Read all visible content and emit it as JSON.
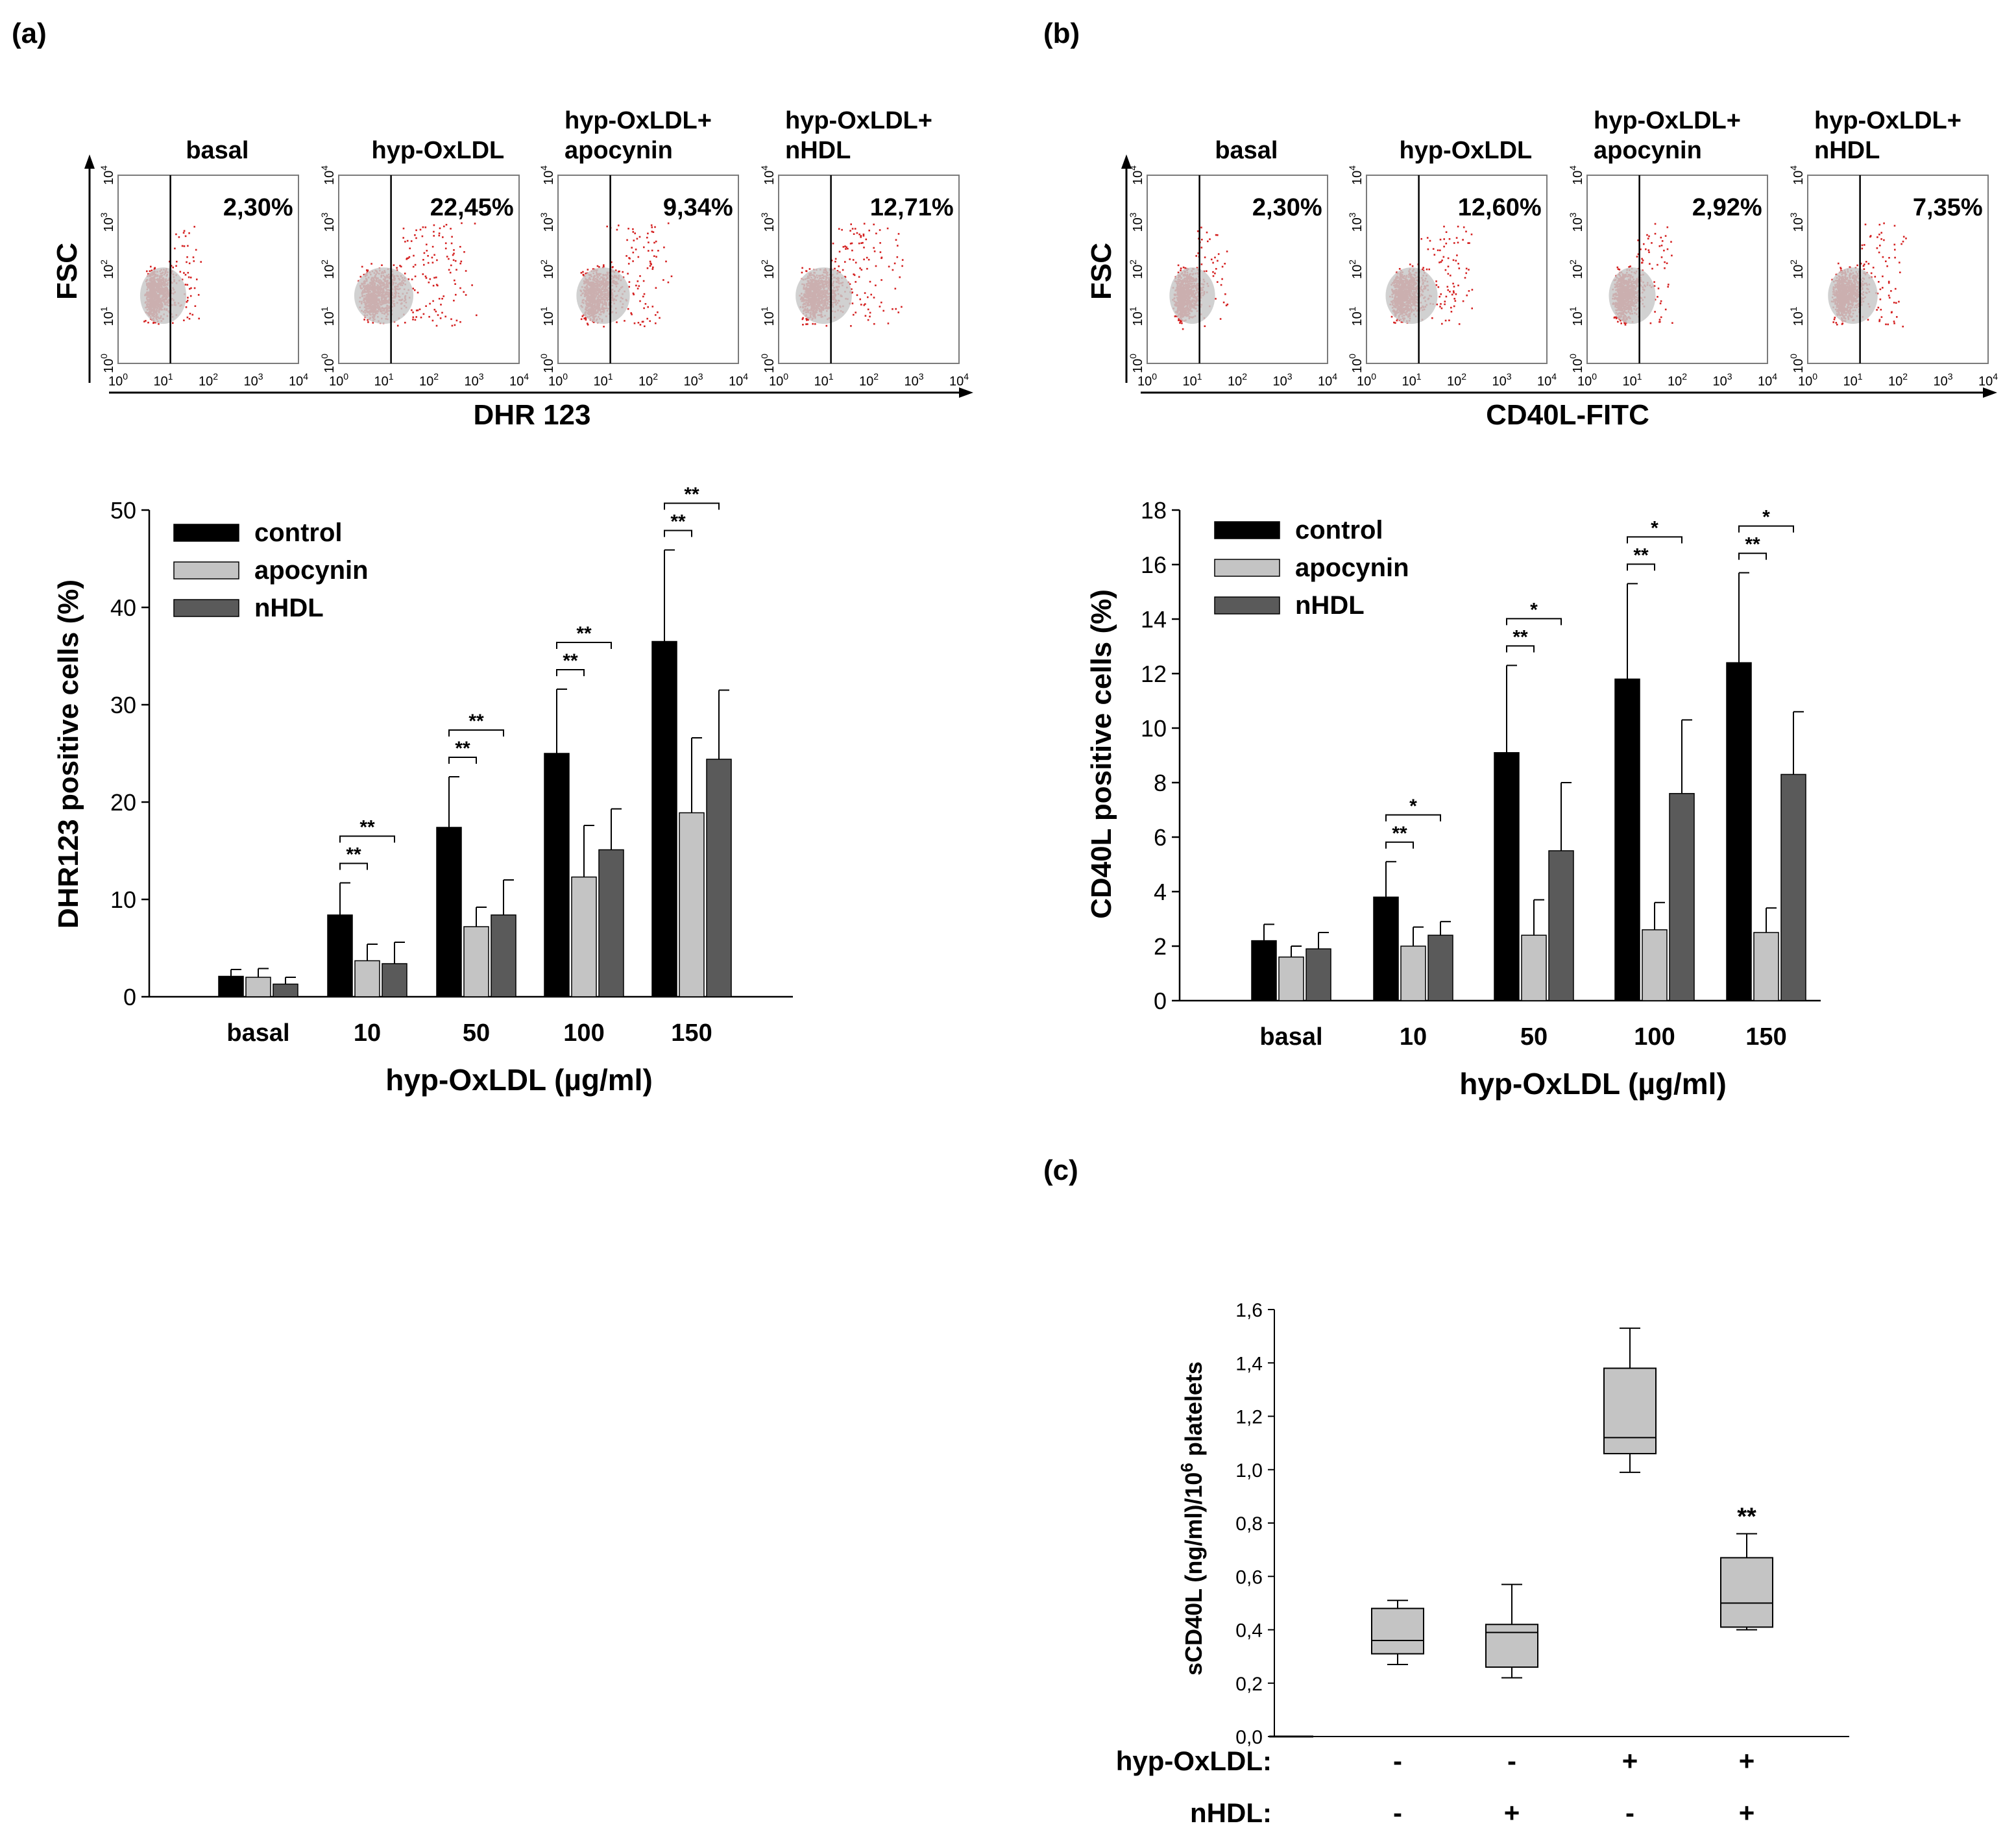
{
  "colors": {
    "control": "#000000",
    "apocynin": "#c4c4c4",
    "nhdl": "#5a5a5a",
    "box": "#c4c4c4",
    "dots": "#d42020",
    "dots_core": "#c9c9c9"
  },
  "panel_a": {
    "label": "(a)",
    "flow": {
      "y_label": "FSC",
      "x_label": "DHR 123",
      "plots": [
        {
          "title_line1": "basal",
          "title_line2": "",
          "percent": "2,30%",
          "spread": 0.1
        },
        {
          "title_line1": "hyp-OxLDL",
          "title_line2": "",
          "percent": "22,45%",
          "spread": 0.55
        },
        {
          "title_line1": "hyp-OxLDL+",
          "title_line2": "apocynin",
          "percent": "9,34%",
          "spread": 0.35
        },
        {
          "title_line1": "hyp-OxLDL+",
          "title_line2": "nHDL",
          "percent": "12,71%",
          "spread": 0.45
        }
      ],
      "ticks": [
        "10",
        "10",
        "10",
        "10",
        "10"
      ],
      "tick_exps": [
        "0",
        "1",
        "2",
        "3",
        "4"
      ]
    }
  },
  "panel_b": {
    "label": "(b)",
    "flow": {
      "y_label": "FSC",
      "x_label": "CD40L-FITC",
      "plots": [
        {
          "title_line1": "basal",
          "title_line2": "",
          "percent": "2,30%",
          "spread": 0.08
        },
        {
          "title_line1": "hyp-OxLDL",
          "title_line2": "",
          "percent": "12,60%",
          "spread": 0.3
        },
        {
          "title_line1": "hyp-OxLDL+",
          "title_line2": "apocynin",
          "percent": "2,92%",
          "spread": 0.12
        },
        {
          "title_line1": "hyp-OxLDL+",
          "title_line2": "nHDL",
          "percent": "7,35%",
          "spread": 0.22
        }
      ],
      "ticks": [
        "10",
        "10",
        "10",
        "10",
        "10"
      ],
      "tick_exps": [
        "0",
        "1",
        "2",
        "3",
        "4"
      ]
    }
  },
  "panel_c": {
    "label": "(c)"
  },
  "chart_data": [
    {
      "id": "a",
      "type": "bar",
      "title": "",
      "xlabel": "hyp-OxLDL (µg/ml)",
      "ylabel": "DHR123 positive cells (%)",
      "ylim": [
        0,
        50
      ],
      "yticks": [
        "0",
        "10",
        "20",
        "30",
        "40",
        "50"
      ],
      "categories": [
        "basal",
        "10",
        "50",
        "100",
        "150"
      ],
      "legend": [
        "control",
        "apocynin",
        "nHDL"
      ],
      "series": [
        {
          "name": "control",
          "values": [
            2.1,
            8.4,
            17.4,
            25.0,
            36.5
          ],
          "errors": [
            0.7,
            3.3,
            5.2,
            6.6,
            9.4
          ]
        },
        {
          "name": "apocynin",
          "values": [
            2.0,
            3.7,
            7.2,
            12.3,
            18.9
          ],
          "errors": [
            0.9,
            1.7,
            2.0,
            5.3,
            7.7
          ]
        },
        {
          "name": "nHDL",
          "values": [
            1.3,
            3.4,
            8.4,
            15.1,
            24.4
          ],
          "errors": [
            0.7,
            2.2,
            3.6,
            4.2,
            7.1
          ]
        }
      ],
      "significance": [
        {
          "category": "10",
          "labels": [
            "**",
            "**"
          ]
        },
        {
          "category": "50",
          "labels": [
            "**",
            "**"
          ]
        },
        {
          "category": "100",
          "labels": [
            "**",
            "**"
          ]
        },
        {
          "category": "150",
          "labels": [
            "**",
            "**"
          ]
        }
      ]
    },
    {
      "id": "b",
      "type": "bar",
      "title": "",
      "xlabel": "hyp-OxLDL (µg/ml)",
      "ylabel": "CD40L positive cells (%)",
      "ylim": [
        0,
        18
      ],
      "yticks": [
        "0",
        "2",
        "4",
        "6",
        "8",
        "10",
        "12",
        "14",
        "16",
        "18"
      ],
      "categories": [
        "basal",
        "10",
        "50",
        "100",
        "150"
      ],
      "legend": [
        "control",
        "apocynin",
        "nHDL"
      ],
      "series": [
        {
          "name": "control",
          "values": [
            2.2,
            3.8,
            9.1,
            11.8,
            12.4
          ],
          "errors": [
            0.6,
            1.3,
            3.2,
            3.5,
            3.3
          ]
        },
        {
          "name": "apocynin",
          "values": [
            1.6,
            2.0,
            2.4,
            2.6,
            2.5
          ],
          "errors": [
            0.4,
            0.7,
            1.3,
            1.0,
            0.9
          ]
        },
        {
          "name": "nHDL",
          "values": [
            1.9,
            2.4,
            5.5,
            7.6,
            8.3
          ],
          "errors": [
            0.6,
            0.5,
            2.5,
            2.7,
            2.3
          ]
        }
      ],
      "significance": [
        {
          "category": "10",
          "labels": [
            "**",
            "*"
          ]
        },
        {
          "category": "50",
          "labels": [
            "**",
            "*"
          ]
        },
        {
          "category": "100",
          "labels": [
            "**",
            "*"
          ]
        },
        {
          "category": "150",
          "labels": [
            "**",
            "*"
          ]
        }
      ]
    },
    {
      "id": "c",
      "type": "box",
      "title": "",
      "ylabel": "sCD40L (ng/ml)/10",
      "ylabel_sup": "6",
      "ylabel_tail": " platelets",
      "ylim": [
        0,
        1.6
      ],
      "yticks": [
        "0,0",
        "0,2",
        "0,4",
        "0,6",
        "0,8",
        "1,0",
        "1,2",
        "1,4",
        "1,6"
      ],
      "row_labels": [
        "hyp-OxLDL:",
        "nHDL:"
      ],
      "groups": [
        {
          "hyp": "-",
          "nhdl": "-",
          "min": 0.27,
          "q1": 0.31,
          "median": 0.36,
          "q3": 0.48,
          "max": 0.51,
          "sig": ""
        },
        {
          "hyp": "-",
          "nhdl": "+",
          "min": 0.22,
          "q1": 0.26,
          "median": 0.39,
          "q3": 0.42,
          "max": 0.57,
          "sig": ""
        },
        {
          "hyp": "+",
          "nhdl": "-",
          "min": 0.99,
          "q1": 1.06,
          "median": 1.12,
          "q3": 1.38,
          "max": 1.53,
          "sig": ""
        },
        {
          "hyp": "+",
          "nhdl": "+",
          "min": 0.4,
          "q1": 0.41,
          "median": 0.5,
          "q3": 0.67,
          "max": 0.76,
          "sig": "**"
        }
      ]
    }
  ]
}
